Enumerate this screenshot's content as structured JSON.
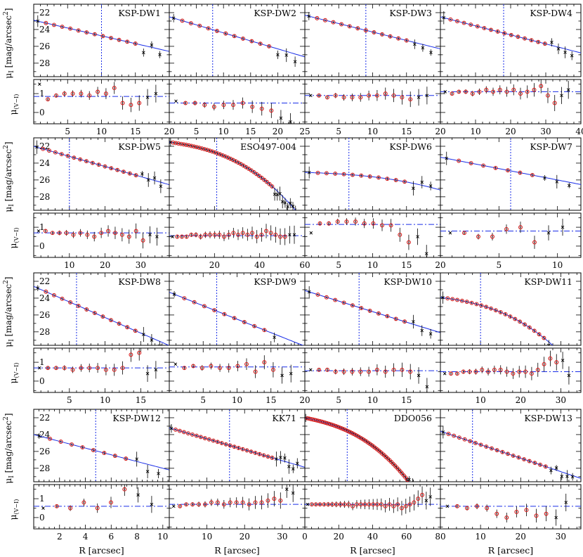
{
  "chart_data": {
    "type": "scatter",
    "mu_label_main": "μ",
    "mu_label_sub": "I",
    "mu_label_unit": " [mag/arcsec",
    "mu_label_unit_sup": "2",
    "mu_label_unit_end": "]",
    "color_label_main": "μ",
    "color_label_sub": "(V−I)",
    "xlabel": "R [arcsec]",
    "colors": {
      "fit": "#1a2ee8",
      "points": "#d41a1a",
      "excluded": "#000000"
    },
    "mu_ticks": [
      "22",
      "24",
      "26",
      "28"
    ],
    "color_ticks": [
      "1",
      "0"
    ],
    "panels": [
      {
        "title": "KSP-DW1",
        "xmax": 20,
        "xticks": [
          5,
          10,
          15,
          20
        ],
        "re": 10,
        "mu0": 22.9,
        "slope": 0.185,
        "ncut": 13,
        "cmean": 0.85,
        "cvals": [
          1.5,
          0.7,
          0.9,
          1.0,
          1.0,
          1.0,
          0.9,
          1.1,
          1.0,
          1.3,
          0.5,
          0.4,
          0.5,
          0.8,
          1.0
        ]
      },
      {
        "title": "KSP-DW2",
        "xmax": 25,
        "xticks": [
          5,
          10,
          15,
          20,
          25
        ],
        "re": 8,
        "mu0": 22.5,
        "slope": 0.19,
        "ncut": 12,
        "cmean": 0.5,
        "cvals": [
          0.6,
          0.5,
          0.5,
          0.4,
          0.3,
          0.4,
          0.4,
          0.5,
          0.3,
          0.2,
          0.1,
          -0.3,
          -0.5
        ]
      },
      {
        "title": "KSP-DW3",
        "xmax": 20,
        "xticks": [
          5,
          10,
          15,
          20
        ],
        "re": 9,
        "mu0": 22.3,
        "slope": 0.2,
        "ncut": 13,
        "cmean": 0.9,
        "cvals": [
          0.9,
          0.9,
          0.8,
          0.9,
          0.8,
          0.8,
          0.8,
          0.9,
          0.9,
          1.0,
          0.9,
          0.8,
          0.7,
          0.8,
          0.9
        ]
      },
      {
        "title": "KSP-DW4",
        "xmax": 40,
        "xticks": [
          10,
          20,
          30,
          40
        ],
        "re": 18,
        "mu0": 22.5,
        "slope": 0.107,
        "ncut": 16,
        "cmean": 1.1,
        "cvals": [
          1.1,
          1.0,
          1.1,
          1.1,
          1.0,
          1.1,
          1.2,
          1.1,
          1.2,
          1.1,
          1.2,
          1.0,
          1.1,
          1.2,
          1.4,
          0.9,
          0.5,
          0.9,
          1.2
        ]
      },
      {
        "title": "KSP-DW5",
        "xmax": 38,
        "xticks": [
          10,
          20,
          30
        ],
        "re": 10,
        "mu0": 22,
        "slope": 0.12,
        "ncut": 17,
        "cmean": 0.7,
        "cvals": [
          0.8,
          0.8,
          0.7,
          0.7,
          0.7,
          0.6,
          0.7,
          0.6,
          0.5,
          0.7,
          0.8,
          0.7,
          0.6,
          0.5,
          0.8,
          0.3,
          0.6,
          0.5
        ]
      },
      {
        "title": "ESO497-004",
        "xmax": 60,
        "xticks": [
          20,
          40,
          60
        ],
        "re": 21,
        "mu0": 21.5,
        "slope": 0.09,
        "ncut": 40,
        "cmean": 0.55,
        "cvals": [
          0.5,
          0.5,
          0.5,
          0.5,
          0.6,
          0.6,
          0.5,
          0.6,
          0.6,
          0.6,
          0.6,
          0.5,
          0.6,
          0.7,
          0.6,
          0.7,
          0.6,
          0.7,
          0.5,
          0.6,
          0.8,
          0.7,
          0.6,
          0.5,
          0.5,
          0.6,
          0.6
        ]
      },
      {
        "title": "KSP-DW6",
        "xmax": 20,
        "xticks": [
          5,
          10,
          15,
          20
        ],
        "re": 6.5,
        "mu0": 25.1,
        "slope": 0.06,
        "ncut": 12,
        "cmean": 1.15,
        "cvals": [
          0.7,
          1.2,
          1.2,
          1.3,
          1.3,
          1.3,
          1.2,
          1.2,
          1.1,
          1.1,
          0.6,
          0.2,
          0.5,
          -0.4
        ]
      },
      {
        "title": "KSP-DW7",
        "xmax": 12,
        "xticks": [
          5,
          10
        ],
        "re": 6,
        "mu0": 23.3,
        "slope": 0.27,
        "ncut": 8,
        "cmean": 0.8,
        "cvals": [
          0.7,
          0.7,
          0.5,
          0.5,
          0.9,
          1.0,
          0.2,
          0.7,
          1.0
        ]
      },
      {
        "title": "KSP-DW8",
        "xmax": 19,
        "xticks": [
          5,
          10,
          15
        ],
        "re": 6,
        "mu0": 22.6,
        "slope": 0.37,
        "ncut": 13,
        "cmean": 0.7,
        "cvals": [
          0.7,
          0.7,
          0.7,
          0.7,
          0.6,
          0.7,
          0.7,
          0.7,
          0.6,
          0.6,
          0.7,
          1.4,
          1.5,
          0.4,
          0.6
        ]
      },
      {
        "title": "KSP-DW9",
        "xmax": 20,
        "xticks": [
          5,
          10,
          15,
          20
        ],
        "re": 7,
        "mu0": 23.3,
        "slope": 0.32,
        "ncut": 10,
        "cmean": 0.75,
        "cvals": [
          0.9,
          0.7,
          0.8,
          0.7,
          0.8,
          0.7,
          0.7,
          0.8,
          0.9,
          0.5,
          1.0,
          0.6,
          0.3,
          0.4
        ]
      },
      {
        "title": "KSP-DW10",
        "xmax": 20,
        "xticks": [
          5,
          10,
          15
        ],
        "re": 8,
        "mu0": 23.1,
        "slope": 0.25,
        "ncut": 12,
        "cmean": 0.55,
        "cvals": [
          0.6,
          0.6,
          0.6,
          0.5,
          0.5,
          0.5,
          0.5,
          0.5,
          0.6,
          0.5,
          0.6,
          0.6,
          0.5,
          0.3,
          -0.3
        ]
      },
      {
        "title": "KSP-DW11",
        "xmax": 35,
        "xticks": [
          10,
          20,
          30
        ],
        "re": 10,
        "mu0": 23.9,
        "slope": 0.15,
        "ncut": 22,
        "cmean": 0.5,
        "cvals": [
          0.4,
          0.4,
          0.4,
          0.5,
          0.5,
          0.5,
          0.6,
          0.5,
          0.6,
          0.6,
          0.5,
          0.4,
          0.5,
          0.5,
          0.4,
          0.6,
          0.9,
          1.2,
          1.0,
          1.1,
          0.3
        ]
      },
      {
        "title": "KSP-DW12",
        "xmax": 10.5,
        "xticks": [
          2,
          4,
          6,
          8,
          10
        ],
        "re": 4.8,
        "mu0": 24,
        "slope": 0.4,
        "ncut": 9,
        "cmean": 0.6,
        "cvals": [
          0.5,
          0.6,
          0.5,
          0.8,
          0.5,
          0.8,
          1.5,
          1.2,
          0.7
        ]
      },
      {
        "title": "KK71",
        "xmax": 36,
        "xticks": [
          10,
          20,
          30
        ],
        "re": 16,
        "mu0": 23.2,
        "slope": 0.13,
        "ncut": 25,
        "cmean": 0.7,
        "cvals": [
          0.6,
          0.6,
          0.7,
          0.7,
          0.7,
          0.7,
          0.8,
          0.8,
          0.7,
          0.8,
          0.8,
          0.8,
          0.7,
          0.8,
          0.8,
          0.9,
          1.0,
          0.9,
          1.5,
          1.3
        ]
      },
      {
        "title": "DDO056",
        "xmax": 80,
        "xticks": [
          0,
          20,
          40,
          60,
          80
        ],
        "re": 25,
        "mu0": 22,
        "slope": 0.095,
        "ncut": 58,
        "cmean": 0.7,
        "cvals": [
          0.7,
          0.7,
          0.7,
          0.7,
          0.7,
          0.7,
          0.7,
          0.7,
          0.7,
          0.7,
          0.7,
          0.6,
          0.7,
          0.7,
          0.7,
          0.7,
          0.7,
          0.7,
          0.7,
          0.6,
          0.7,
          0.6,
          0.7,
          0.5,
          0.6,
          0.7,
          0.8,
          1.0,
          1.2,
          0.9,
          1.1
        ]
      },
      {
        "title": "KSP-DW13",
        "xmax": 35,
        "xticks": [
          10,
          20,
          30
        ],
        "re": 8,
        "mu0": 23.6,
        "slope": 0.16,
        "ncut": 20,
        "cmean": 0.6,
        "cvals": [
          0.6,
          0.6,
          0.5,
          0.6,
          0.5,
          0.2,
          0.0,
          0.3,
          0.4,
          0.1,
          0.2,
          0.0,
          0.8
        ]
      }
    ]
  }
}
